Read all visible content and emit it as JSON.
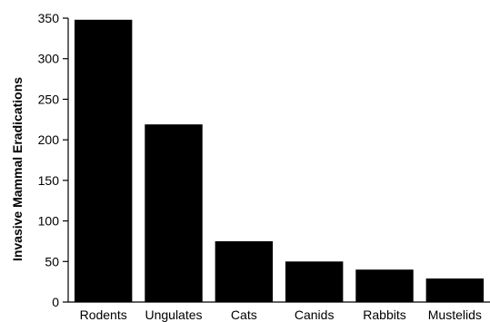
{
  "chart_data": {
    "type": "bar",
    "title": "",
    "xlabel": "",
    "ylabel": "Invasive Mammal Eradications",
    "categories": [
      "Rodents",
      "Ungulates",
      "Cats",
      "Canids",
      "Rabbits",
      "Mustelids"
    ],
    "values": [
      348,
      219,
      75,
      50,
      40,
      29
    ],
    "ylim": [
      0,
      350
    ],
    "yticks": [
      0,
      50,
      100,
      150,
      200,
      250,
      300,
      350
    ],
    "grid": false,
    "legend": "none",
    "bar_color": "#000000"
  }
}
